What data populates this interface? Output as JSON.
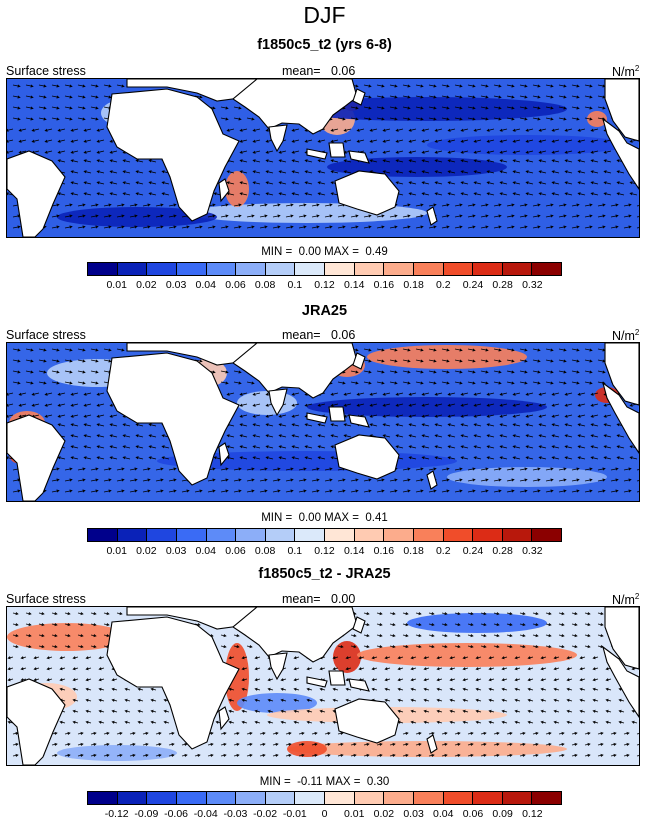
{
  "figure_title": "DJF",
  "colors": {
    "ramp": [
      "#00008b",
      "#0a22b8",
      "#1f46e0",
      "#3a6bf5",
      "#5d8bf8",
      "#8caef8",
      "#b4cdf8",
      "#dbe9fa",
      "#ffe6d6",
      "#ffcbb2",
      "#fcac8c",
      "#f9805a",
      "#f04d2a",
      "#dc2c16",
      "#b8180c",
      "#8b0000"
    ],
    "land": "#ffffff",
    "coast": "#000000"
  },
  "panels": [
    {
      "title": "f1850c5_t2 (yrs 6-8)",
      "left_label": "Surface stress",
      "mean_label": "mean=",
      "mean_value": "0.06",
      "units": "N/m",
      "units_sup": "2",
      "min_label": "MIN =",
      "min_value": "0.00",
      "max_label": "MAX =",
      "max_value": "0.49",
      "colorbar_labels": [
        "0.01",
        "0.02",
        "0.03",
        "0.04",
        "0.06",
        "0.08",
        "0.1",
        "0.12",
        "0.14",
        "0.16",
        "0.18",
        "0.2",
        "0.24",
        "0.28",
        "0.32"
      ],
      "colorbar_colors": [
        "#00008b",
        "#0a22b8",
        "#1f46e0",
        "#3a6bf5",
        "#5d8bf8",
        "#8caef8",
        "#b4cdf8",
        "#dbe9fa",
        "#ffe6d6",
        "#ffcbb2",
        "#fcac8c",
        "#f9805a",
        "#f04d2a",
        "#dc2c16",
        "#b8180c",
        "#8b0000"
      ],
      "background_color": "#2f5fe6"
    },
    {
      "title": "JRA25",
      "left_label": "Surface stress",
      "mean_label": "mean=",
      "mean_value": "0.06",
      "units": "N/m",
      "units_sup": "2",
      "min_label": "MIN =",
      "min_value": "0.00",
      "max_label": "MAX =",
      "max_value": "0.41",
      "colorbar_labels": [
        "0.01",
        "0.02",
        "0.03",
        "0.04",
        "0.06",
        "0.08",
        "0.1",
        "0.12",
        "0.14",
        "0.16",
        "0.18",
        "0.2",
        "0.24",
        "0.28",
        "0.32"
      ],
      "colorbar_colors": [
        "#00008b",
        "#0a22b8",
        "#1f46e0",
        "#3a6bf5",
        "#5d8bf8",
        "#8caef8",
        "#b4cdf8",
        "#dbe9fa",
        "#ffe6d6",
        "#ffcbb2",
        "#fcac8c",
        "#f9805a",
        "#f04d2a",
        "#dc2c16",
        "#b8180c",
        "#8b0000"
      ],
      "background_color": "#3566e8"
    },
    {
      "title": "f1850c5_t2 - JRA25",
      "left_label": "Surface stress",
      "mean_label": "mean=",
      "mean_value": "0.00",
      "units": "N/m",
      "units_sup": "2",
      "min_label": "MIN =",
      "min_value": "-0.11",
      "max_label": "MAX =",
      "max_value": "0.30",
      "colorbar_labels": [
        "-0.12",
        "-0.09",
        "-0.06",
        "-0.04",
        "-0.03",
        "-0.02",
        "-0.01",
        "0",
        "0.01",
        "0.02",
        "0.03",
        "0.04",
        "0.06",
        "0.09",
        "0.12"
      ],
      "colorbar_colors": [
        "#00008b",
        "#0a22b8",
        "#1f46e0",
        "#3a6bf5",
        "#5d8bf8",
        "#8caef8",
        "#b4cdf8",
        "#dbe9fa",
        "#ffe6d6",
        "#ffcbb2",
        "#fcac8c",
        "#f9805a",
        "#f04d2a",
        "#dc2c16",
        "#b8180c",
        "#8b0000"
      ],
      "background_color": "#d9e6fa"
    }
  ]
}
